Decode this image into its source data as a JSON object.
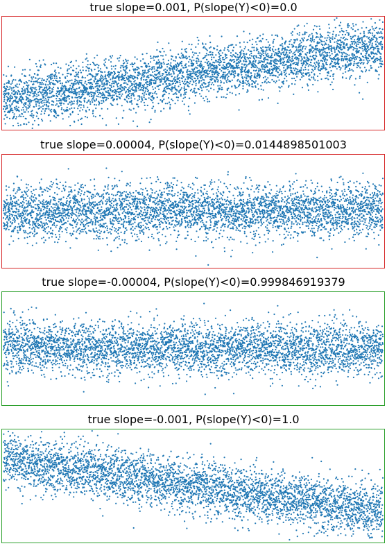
{
  "chart_data": [
    {
      "type": "scatter",
      "title": "true slope=0.001, P(slope(Y)<0)=0.0",
      "true_slope": 0.001,
      "p_negative_slope": 0.0,
      "border_color": "#d62728",
      "marker_color": "#1f77b4",
      "n_points": 4000,
      "trend": {
        "x": [
          0,
          4000
        ],
        "y": [
          -2.0,
          2.0
        ]
      },
      "noise_sd": 1.0,
      "axes_visible": false
    },
    {
      "type": "scatter",
      "title": "true slope=0.00004, P(slope(Y)<0)=0.0144898501003",
      "true_slope": 4e-05,
      "p_negative_slope": 0.0144898501003,
      "border_color": "#d62728",
      "marker_color": "#1f77b4",
      "n_points": 4000,
      "trend": {
        "x": [
          0,
          4000
        ],
        "y": [
          -0.08,
          0.08
        ]
      },
      "noise_sd": 1.0,
      "axes_visible": false
    },
    {
      "type": "scatter",
      "title": "true slope=-0.00004, P(slope(Y)<0)=0.999846919379",
      "true_slope": -4e-05,
      "p_negative_slope": 0.999846919379,
      "border_color": "#2ca02c",
      "marker_color": "#1f77b4",
      "n_points": 4000,
      "trend": {
        "x": [
          0,
          4000
        ],
        "y": [
          0.08,
          -0.08
        ]
      },
      "noise_sd": 1.0,
      "axes_visible": false
    },
    {
      "type": "scatter",
      "title": "true slope=-0.001, P(slope(Y)<0)=1.0",
      "true_slope": -0.001,
      "p_negative_slope": 1.0,
      "border_color": "#2ca02c",
      "marker_color": "#1f77b4",
      "n_points": 4000,
      "trend": {
        "x": [
          0,
          4000
        ],
        "y": [
          2.0,
          -2.0
        ]
      },
      "noise_sd": 1.0,
      "axes_visible": false
    }
  ]
}
